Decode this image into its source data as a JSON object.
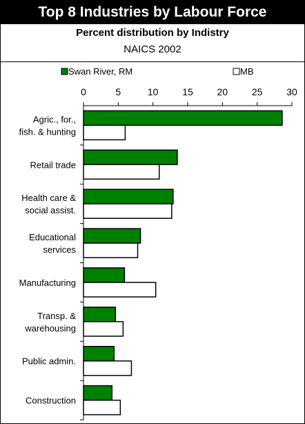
{
  "header": {
    "title": "Top 8 Industries by Labour Force",
    "subtitle": "Percent distribution by Indistry",
    "subtitle2": "NAICS 2002"
  },
  "colors": {
    "series1": "#008000",
    "series2": "#ffffff",
    "stroke": "#000000"
  },
  "chart_data": {
    "type": "bar",
    "orientation": "horizontal",
    "categories": [
      [
        "Agric., for.,",
        "fish. & hunting"
      ],
      [
        "Retail trade"
      ],
      [
        "Health care &",
        "social assist."
      ],
      [
        "Educational",
        "services"
      ],
      [
        "Manufacturing"
      ],
      [
        "Transp. &",
        "warehousing"
      ],
      [
        "Public admin."
      ],
      [
        "Construction"
      ]
    ],
    "series": [
      {
        "name": "Swan River, RM",
        "values": [
          28.6,
          13.5,
          12.9,
          8.2,
          5.9,
          4.6,
          4.4,
          4.1
        ]
      },
      {
        "name": "MB",
        "values": [
          6.0,
          10.9,
          12.7,
          7.8,
          10.4,
          5.7,
          6.9,
          5.3
        ]
      }
    ],
    "xlim": [
      0,
      30
    ],
    "xticks": [
      0,
      5,
      10,
      15,
      20,
      25,
      30
    ],
    "legend_position": "top"
  }
}
